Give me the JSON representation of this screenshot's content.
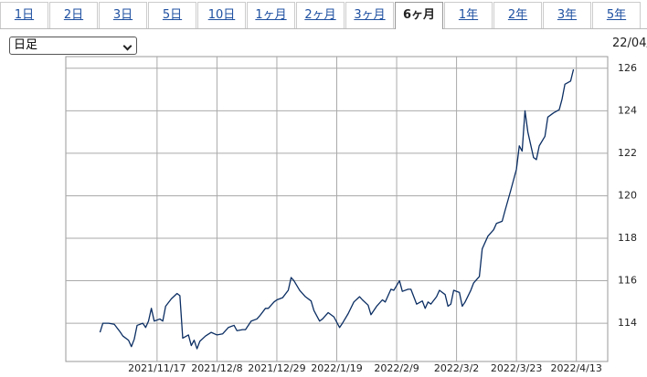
{
  "tabs": [
    "1日",
    "2日",
    "3日",
    "5日",
    "10日",
    "1ヶ月",
    "2ヶ月",
    "3ヶ月",
    "6ヶ月",
    "1年",
    "2年",
    "3年",
    "5年"
  ],
  "active_tab": 8,
  "select_label": "日足",
  "header_text": "22/04/",
  "chart_data": {
    "type": "line",
    "color": "#0b2e63",
    "grid": true,
    "x": [
      "2021/10/28",
      "2021/10/29",
      "2021/10/31",
      "2021/11/2",
      "2021/11/4",
      "2021/11/5",
      "2021/11/7",
      "2021/11/8",
      "2021/11/9",
      "2021/11/10",
      "2021/11/12",
      "2021/11/13",
      "2021/11/14",
      "2021/11/15",
      "2021/11/16",
      "2021/11/18",
      "2021/11/19",
      "2021/11/20",
      "2021/11/22",
      "2021/11/24",
      "2021/11/25",
      "2021/11/26",
      "2021/11/28",
      "2021/11/29",
      "2021/11/30",
      "2021/12/1",
      "2021/12/2",
      "2021/12/4",
      "2021/12/6",
      "2021/12/8",
      "2021/12/10",
      "2021/12/12",
      "2021/12/14",
      "2021/12/15",
      "2021/12/17",
      "2021/12/18",
      "2021/12/20",
      "2021/12/22",
      "2021/12/23",
      "2021/12/25",
      "2021/12/26",
      "2021/12/28",
      "2021/12/29",
      "2021/12/31",
      "2022/1/2",
      "2022/1/3",
      "2022/1/4",
      "2022/1/6",
      "2022/1/8",
      "2022/1/10",
      "2022/1/11",
      "2022/1/13",
      "2022/1/14",
      "2022/1/16",
      "2022/1/18",
      "2022/1/20",
      "2022/1/21",
      "2022/1/23",
      "2022/1/25",
      "2022/1/27",
      "2022/1/28",
      "2022/1/30",
      "2022/1/31",
      "2022/2/2",
      "2022/2/4",
      "2022/2/5",
      "2022/2/7",
      "2022/2/8",
      "2022/2/10",
      "2022/2/11",
      "2022/2/13",
      "2022/2/14",
      "2022/2/16",
      "2022/2/18",
      "2022/2/19",
      "2022/2/20",
      "2022/2/21",
      "2022/2/23",
      "2022/2/24",
      "2022/2/26",
      "2022/2/27",
      "2022/2/28",
      "2022/3/1",
      "2022/3/3",
      "2022/3/4",
      "2022/3/5",
      "2022/3/7",
      "2022/3/8",
      "2022/3/10",
      "2022/3/11",
      "2022/3/13",
      "2022/3/15",
      "2022/3/16",
      "2022/3/18",
      "2022/3/19",
      "2022/3/21",
      "2022/3/23",
      "2022/3/24",
      "2022/3/25",
      "2022/3/26",
      "2022/3/27",
      "2022/3/29",
      "2022/3/30",
      "2022/3/31",
      "2022/4/2",
      "2022/4/3",
      "2022/4/5",
      "2022/4/7",
      "2022/4/8",
      "2022/4/9",
      "2022/4/11",
      "2022/4/12"
    ],
    "values": [
      113.57,
      114.0,
      114.0,
      113.95,
      113.6,
      113.4,
      113.2,
      112.9,
      113.25,
      113.9,
      114.0,
      113.8,
      114.1,
      114.7,
      114.1,
      114.2,
      114.1,
      114.8,
      115.15,
      115.4,
      115.3,
      113.3,
      113.45,
      112.95,
      113.2,
      112.8,
      113.15,
      113.4,
      113.57,
      113.45,
      113.5,
      113.8,
      113.9,
      113.65,
      113.7,
      113.7,
      114.1,
      114.2,
      114.35,
      114.7,
      114.7,
      115.0,
      115.1,
      115.2,
      115.55,
      116.15,
      116.0,
      115.55,
      115.25,
      115.05,
      114.6,
      114.1,
      114.2,
      114.5,
      114.3,
      113.8,
      114.0,
      114.45,
      115.0,
      115.25,
      115.1,
      114.85,
      114.4,
      114.8,
      115.1,
      115.0,
      115.6,
      115.55,
      116.0,
      115.5,
      115.6,
      115.6,
      114.9,
      115.05,
      114.7,
      115.0,
      114.9,
      115.25,
      115.55,
      115.35,
      114.8,
      114.9,
      115.55,
      115.45,
      114.8,
      115.0,
      115.55,
      115.9,
      116.2,
      117.5,
      118.1,
      118.4,
      118.7,
      118.8,
      119.3,
      120.25,
      121.25,
      122.35,
      122.1,
      124.0,
      123.0,
      121.8,
      121.7,
      122.35,
      122.8,
      123.7,
      123.9,
      124.05,
      124.55,
      125.25,
      125.4,
      125.95
    ],
    "xlim": [
      "2021/10/16",
      "2022/4/24"
    ],
    "xticks": [
      "2021/11/17",
      "2021/12/8",
      "2021/12/29",
      "2022/1/19",
      "2022/2/9",
      "2022/3/2",
      "2022/3/23",
      "2022/4/13"
    ],
    "ylim": [
      112.2,
      126.55
    ],
    "yticks": [
      114,
      116,
      118,
      120,
      122,
      124,
      126
    ]
  }
}
